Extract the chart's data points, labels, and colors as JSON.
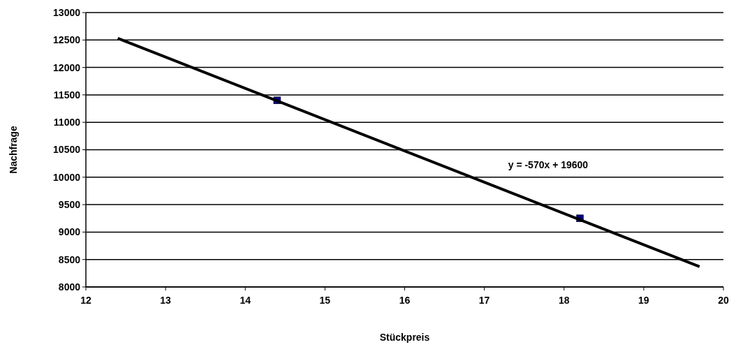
{
  "chart_data": {
    "type": "scatter",
    "xlabel": "Stückpreis",
    "ylabel": "Nachfrage",
    "xlim": [
      12,
      20
    ],
    "xticks": [
      12,
      13,
      14,
      15,
      16,
      17,
      18,
      19,
      20
    ],
    "ylim": [
      8000,
      13000
    ],
    "yticks": [
      8000,
      8500,
      9000,
      9500,
      10000,
      10500,
      11000,
      11500,
      12000,
      12500,
      13000
    ],
    "grid": "y",
    "series": [
      {
        "color": "#000080",
        "marker": "square",
        "x": [
          14.4,
          18.2
        ],
        "values": [
          11400,
          9250
        ]
      },
      {
        "type": "line",
        "color": "#000000",
        "marker": "none",
        "x": [
          12.4,
          19.7
        ],
        "values": [
          12530,
          8370
        ]
      }
    ],
    "annotations": [
      "y = -570x + 19600"
    ]
  }
}
